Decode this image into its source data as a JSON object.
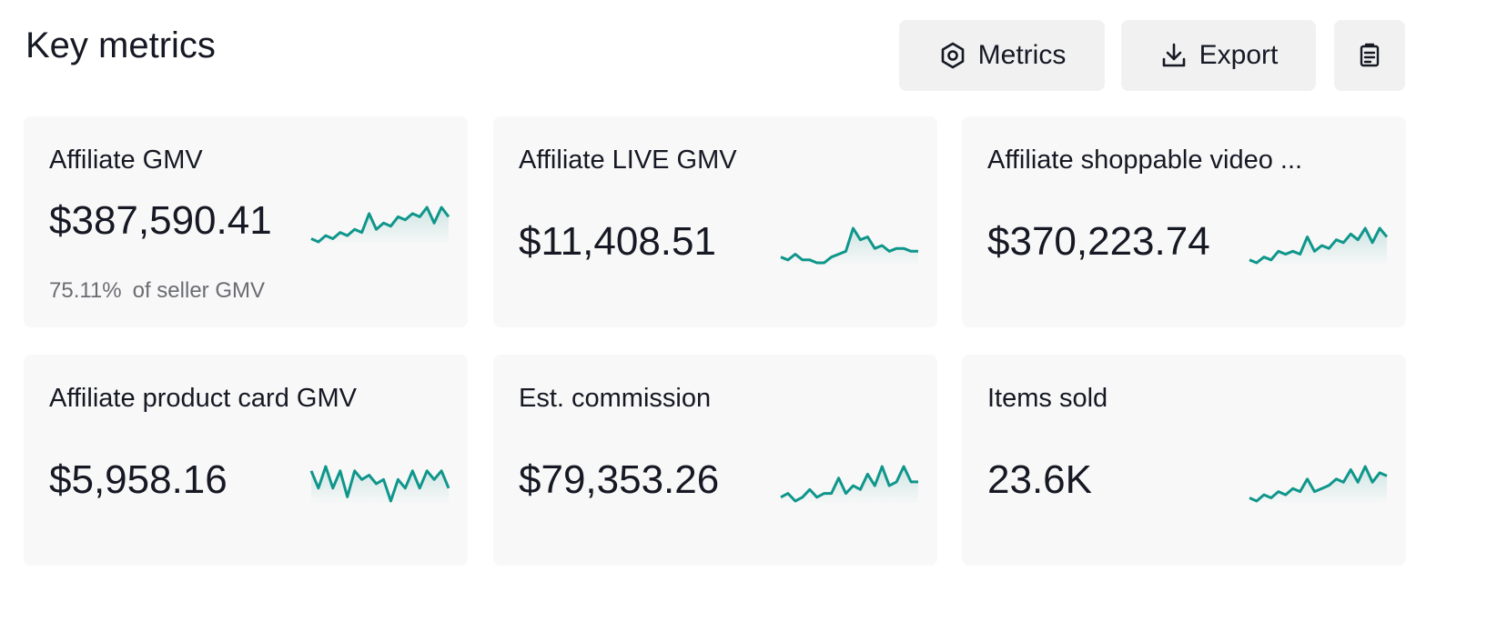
{
  "header": {
    "title": "Key metrics",
    "buttons": [
      "Metrics",
      "Export"
    ]
  },
  "cards": [
    {
      "label": "Affiliate GMV",
      "value": "$387,590.41",
      "note": {
        "value": "75.11%",
        "text": "of seller GMV"
      },
      "sparkline": [
        2,
        1.5,
        2.5,
        2,
        3,
        2.5,
        3.5,
        3,
        6,
        3.5,
        4.5,
        4,
        5.5,
        5,
        6,
        5.5,
        7,
        4.5,
        7,
        5.5
      ]
    },
    {
      "label": "Affiliate LIVE GMV",
      "value": "$11,408.51",
      "sparkline": [
        2,
        1.5,
        2.5,
        1.5,
        1.5,
        1,
        1,
        2,
        2.5,
        3,
        7,
        5,
        5.5,
        3.5,
        4,
        3,
        3.5,
        3.5,
        3,
        3
      ]
    },
    {
      "label": "Affiliate shoppable video ...",
      "value": "$370,223.74",
      "sparkline": [
        1.5,
        1,
        2,
        1.5,
        3,
        2.5,
        3,
        2.5,
        5.5,
        3,
        4,
        3.5,
        5,
        4.5,
        6,
        5,
        7,
        4.5,
        7,
        5.5
      ]
    },
    {
      "label": "Affiliate product card GMV",
      "value": "$5,958.16",
      "sparkline": [
        6,
        4,
        6.5,
        4,
        6,
        3,
        6,
        5,
        5.5,
        4.5,
        5,
        2.5,
        5,
        4,
        6,
        4,
        6,
        5,
        6,
        4
      ]
    },
    {
      "label": "Est. commission",
      "value": "$79,353.26",
      "sparkline": [
        3,
        3.5,
        2.5,
        3,
        4,
        3,
        3.5,
        3.5,
        5.5,
        3.5,
        4.5,
        4,
        6,
        4.5,
        7,
        4.5,
        5,
        7,
        5,
        5
      ]
    },
    {
      "label": "Items sold",
      "value": "23.6K",
      "sparkline": [
        1.5,
        1,
        2,
        1.5,
        2.5,
        2,
        3,
        2.5,
        4.5,
        2.5,
        3,
        3.5,
        4.5,
        4,
        6,
        4,
        6.5,
        4,
        5.5,
        5
      ]
    }
  ]
}
